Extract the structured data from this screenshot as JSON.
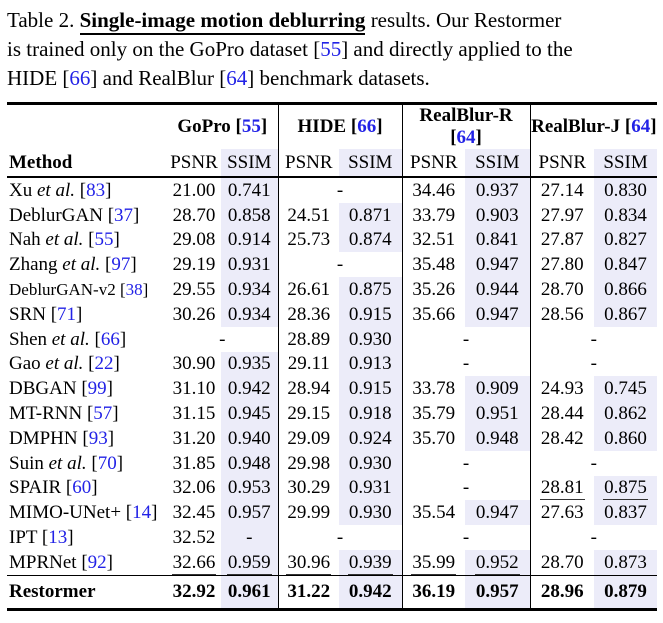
{
  "colors": {
    "citation_blue": "#2222e6",
    "ssim_highlight": "#ececf9",
    "text": "#000000",
    "rule": "#000000"
  },
  "caption": {
    "lines": [
      [
        {
          "text": "Table 2. "
        },
        {
          "text": "Single-image motion deblurring",
          "style": "title"
        },
        {
          "text": " results. Our Restormer"
        }
      ],
      [
        {
          "text": "is trained only on the GoPro dataset ["
        },
        {
          "text": "55",
          "style": "cite"
        },
        {
          "text": "] and directly applied to the"
        }
      ],
      [
        {
          "text": "HIDE ["
        },
        {
          "text": "66",
          "style": "cite"
        },
        {
          "text": "] and RealBlur ["
        },
        {
          "text": "64",
          "style": "cite"
        },
        {
          "text": "] benchmark datasets."
        }
      ]
    ]
  },
  "table": {
    "header": {
      "method_label": "Method",
      "groups": [
        {
          "name": "GoPro",
          "cite": "55"
        },
        {
          "name": "HIDE",
          "cite": "66"
        },
        {
          "name": "RealBlur-R",
          "cite": "64"
        },
        {
          "name": "RealBlur-J",
          "cite": "64"
        }
      ],
      "metric_labels": [
        "PSNR",
        "SSIM"
      ]
    },
    "rows": [
      {
        "method": {
          "name": "Xu",
          "etal": true,
          "cite": "83"
        },
        "cells": [
          {
            "psnr": "21.00",
            "ssim": "0.741"
          },
          {
            "dash": true
          },
          {
            "psnr": "34.46",
            "ssim": "0.937"
          },
          {
            "psnr": "27.14",
            "ssim": "0.830"
          }
        ]
      },
      {
        "method": {
          "name": "DeblurGAN",
          "cite": "37"
        },
        "cells": [
          {
            "psnr": "28.70",
            "ssim": "0.858"
          },
          {
            "psnr": "24.51",
            "ssim": "0.871"
          },
          {
            "psnr": "33.79",
            "ssim": "0.903"
          },
          {
            "psnr": "27.97",
            "ssim": "0.834"
          }
        ]
      },
      {
        "method": {
          "name": "Nah",
          "etal": true,
          "cite": "55"
        },
        "cells": [
          {
            "psnr": "29.08",
            "ssim": "0.914"
          },
          {
            "psnr": "25.73",
            "ssim": "0.874"
          },
          {
            "psnr": "32.51",
            "ssim": "0.841"
          },
          {
            "psnr": "27.87",
            "ssim": "0.827"
          }
        ]
      },
      {
        "method": {
          "name": "Zhang",
          "etal": true,
          "cite": "97"
        },
        "cells": [
          {
            "psnr": "29.19",
            "ssim": "0.931"
          },
          {
            "dash": true
          },
          {
            "psnr": "35.48",
            "ssim": "0.947"
          },
          {
            "psnr": "27.80",
            "ssim": "0.847"
          }
        ]
      },
      {
        "method": {
          "name": "DeblurGAN-v2",
          "cite": "38",
          "small": true
        },
        "cells": [
          {
            "psnr": "29.55",
            "ssim": "0.934"
          },
          {
            "psnr": "26.61",
            "ssim": "0.875"
          },
          {
            "psnr": "35.26",
            "ssim": "0.944"
          },
          {
            "psnr": "28.70",
            "ssim": "0.866"
          }
        ]
      },
      {
        "method": {
          "name": "SRN",
          "cite": "71"
        },
        "cells": [
          {
            "psnr": "30.26",
            "ssim": "0.934"
          },
          {
            "psnr": "28.36",
            "ssim": "0.915"
          },
          {
            "psnr": "35.66",
            "ssim": "0.947"
          },
          {
            "psnr": "28.56",
            "ssim": "0.867"
          }
        ]
      },
      {
        "method": {
          "name": "Shen",
          "etal": true,
          "cite": "66"
        },
        "cells": [
          {
            "dash": true
          },
          {
            "psnr": "28.89",
            "ssim": "0.930"
          },
          {
            "dash": true
          },
          {
            "dash": true
          }
        ]
      },
      {
        "method": {
          "name": "Gao",
          "etal": true,
          "cite": "22"
        },
        "cells": [
          {
            "psnr": "30.90",
            "ssim": "0.935"
          },
          {
            "psnr": "29.11",
            "ssim": "0.913"
          },
          {
            "dash": true
          },
          {
            "dash": true
          }
        ]
      },
      {
        "method": {
          "name": "DBGAN",
          "cite": "99"
        },
        "cells": [
          {
            "psnr": "31.10",
            "ssim": "0.942"
          },
          {
            "psnr": "28.94",
            "ssim": "0.915"
          },
          {
            "psnr": "33.78",
            "ssim": "0.909"
          },
          {
            "psnr": "24.93",
            "ssim": "0.745"
          }
        ]
      },
      {
        "method": {
          "name": "MT-RNN",
          "cite": "57"
        },
        "cells": [
          {
            "psnr": "31.15",
            "ssim": "0.945"
          },
          {
            "psnr": "29.15",
            "ssim": "0.918"
          },
          {
            "psnr": "35.79",
            "ssim": "0.951"
          },
          {
            "psnr": "28.44",
            "ssim": "0.862"
          }
        ]
      },
      {
        "method": {
          "name": "DMPHN",
          "cite": "93"
        },
        "cells": [
          {
            "psnr": "31.20",
            "ssim": "0.940"
          },
          {
            "psnr": "29.09",
            "ssim": "0.924"
          },
          {
            "psnr": "35.70",
            "ssim": "0.948"
          },
          {
            "psnr": "28.42",
            "ssim": "0.860"
          }
        ]
      },
      {
        "method": {
          "name": "Suin",
          "etal": true,
          "cite": "70"
        },
        "cells": [
          {
            "psnr": "31.85",
            "ssim": "0.948"
          },
          {
            "psnr": "29.98",
            "ssim": "0.930"
          },
          {
            "dash": true
          },
          {
            "dash": true
          }
        ]
      },
      {
        "method": {
          "name": "SPAIR",
          "cite": "60"
        },
        "cells": [
          {
            "psnr": "32.06",
            "ssim": "0.953"
          },
          {
            "psnr": "30.29",
            "ssim": "0.931"
          },
          {
            "dash": true
          },
          {
            "psnr": "28.81",
            "ssim": "0.875",
            "underline": true
          }
        ]
      },
      {
        "method": {
          "name": "MIMO-UNet+",
          "cite": "14"
        },
        "cells": [
          {
            "psnr": "32.45",
            "ssim": "0.957"
          },
          {
            "psnr": "29.99",
            "ssim": "0.930"
          },
          {
            "psnr": "35.54",
            "ssim": "0.947"
          },
          {
            "psnr": "27.63",
            "ssim": "0.837"
          }
        ]
      },
      {
        "method": {
          "name": "IPT",
          "cite": "13"
        },
        "cells": [
          {
            "psnr": "32.52",
            "ssim": "-"
          },
          {
            "dash": true
          },
          {
            "dash": true
          },
          {
            "dash": true
          }
        ]
      },
      {
        "method": {
          "name": "MPRNet",
          "cite": "92"
        },
        "cells": [
          {
            "psnr": "32.66",
            "ssim": "0.959",
            "underline": true
          },
          {
            "psnr": "30.96",
            "ssim": "0.939",
            "underline": true
          },
          {
            "psnr": "35.99",
            "ssim": "0.952",
            "underline": true
          },
          {
            "psnr": "28.70",
            "ssim": "0.873"
          }
        ]
      },
      {
        "method": {
          "name": "Restormer"
        },
        "bold": true,
        "final": true,
        "cells": [
          {
            "psnr": "32.92",
            "ssim": "0.961"
          },
          {
            "psnr": "31.22",
            "ssim": "0.942"
          },
          {
            "psnr": "36.19",
            "ssim": "0.957"
          },
          {
            "psnr": "28.96",
            "ssim": "0.879"
          }
        ]
      }
    ],
    "missing_placeholder": "-"
  }
}
